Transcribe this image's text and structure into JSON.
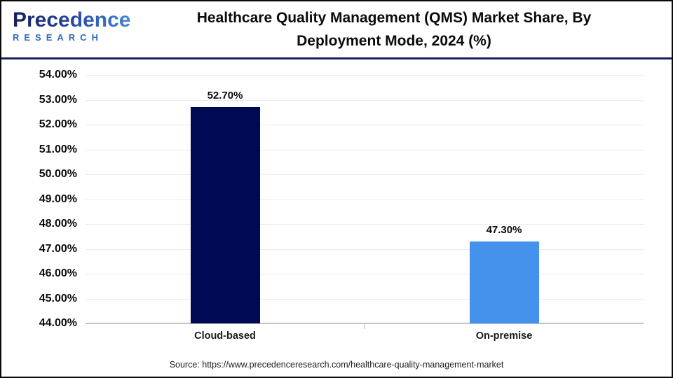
{
  "header": {
    "logo_line1": "Precedence",
    "logo_line2": "RESEARCH",
    "title_line1": "Healthcare Quality Management (QMS) Market Share, By",
    "title_line2": "Deployment Mode, 2024 (%)"
  },
  "chart_data": {
    "type": "bar",
    "title": "Healthcare Quality Management (QMS) Market Share, By Deployment Mode, 2024 (%)",
    "categories": [
      "Cloud-based",
      "On-premise"
    ],
    "values": [
      52.7,
      47.3
    ],
    "value_labels": [
      "52.70%",
      "47.30%"
    ],
    "bar_colors": [
      "#000A54",
      "#4592EC"
    ],
    "xlabel": "",
    "ylabel": "",
    "ylim": [
      44,
      54
    ],
    "ytick_step": 1,
    "ytick_labels": [
      "54.00%",
      "53.00%",
      "52.00%",
      "51.00%",
      "50.00%",
      "49.00%",
      "48.00%",
      "47.00%",
      "46.00%",
      "45.00%",
      "44.00%"
    ],
    "grid": true,
    "legend": false
  },
  "footer": {
    "source": "Source: https://www.precedenceresearch.com/healthcare-quality-management-market"
  },
  "colors": {
    "header_separator": "#1a2060",
    "gridline": "#eaeaea",
    "axis_line": "#c3c3c3",
    "bar_cloud_based": "#000A54",
    "bar_on_premise": "#4592EC",
    "logo_dark_blue": "#16205f",
    "logo_light_blue": "#3f86d8"
  }
}
